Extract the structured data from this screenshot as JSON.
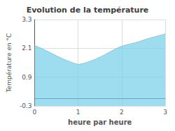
{
  "chart_data": {
    "type": "area",
    "title": "Evolution de la température",
    "xlabel": "heure par heure",
    "ylabel": "Température en °C",
    "x": [
      0.0,
      0.1,
      0.2,
      0.3,
      0.4,
      0.5,
      0.6,
      0.7,
      0.8,
      0.9,
      1.0,
      1.1,
      1.2,
      1.3,
      1.4,
      1.5,
      1.6,
      1.7,
      1.8,
      1.9,
      2.0,
      2.1,
      2.2,
      2.3,
      2.4,
      2.5,
      2.6,
      2.7,
      2.8,
      2.9,
      3.0
    ],
    "values": [
      2.22,
      2.14,
      2.06,
      1.97,
      1.88,
      1.79,
      1.7,
      1.62,
      1.55,
      1.48,
      1.43,
      1.46,
      1.51,
      1.58,
      1.65,
      1.73,
      1.82,
      1.92,
      2.02,
      2.11,
      2.19,
      2.24,
      2.28,
      2.33,
      2.38,
      2.44,
      2.5,
      2.55,
      2.6,
      2.65,
      2.7
    ],
    "color": "#74cfe8",
    "xlim": [
      0,
      3
    ],
    "ylim": [
      -0.3,
      3.3
    ],
    "xticks": [
      0,
      1,
      2,
      3
    ],
    "yticks": [
      -0.3,
      0.9,
      2.1,
      3.3
    ],
    "grid": true
  }
}
